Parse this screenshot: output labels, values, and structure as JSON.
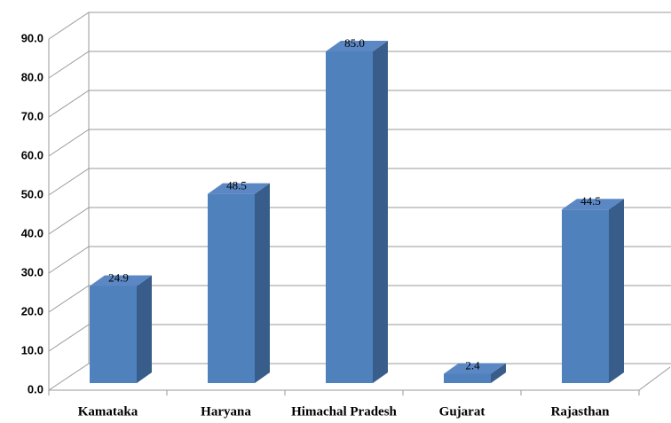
{
  "chart_data": {
    "type": "bar",
    "categories": [
      "Kamataka",
      "Haryana",
      "Himachal Pradesh",
      "Gujarat",
      "Rajasthan"
    ],
    "values": [
      24.9,
      48.5,
      85.0,
      2.4,
      44.5
    ],
    "value_labels": [
      "24.9",
      "48.5",
      "85.0",
      "2.4",
      "44.5"
    ],
    "color": "#4f81bd",
    "ylim": [
      0,
      90
    ],
    "yticks": [
      {
        "value": 0,
        "label": "0.0"
      },
      {
        "value": 10,
        "label": "10.0"
      },
      {
        "value": 20,
        "label": "20.0"
      },
      {
        "value": 30,
        "label": "30.0"
      },
      {
        "value": 40,
        "label": "40.0"
      },
      {
        "value": 50,
        "label": "50.0"
      },
      {
        "value": 60,
        "label": "60.0"
      },
      {
        "value": 70,
        "label": "70.0"
      },
      {
        "value": 80,
        "label": "80.0"
      },
      {
        "value": 90,
        "label": "90.0"
      }
    ],
    "grid": true
  }
}
